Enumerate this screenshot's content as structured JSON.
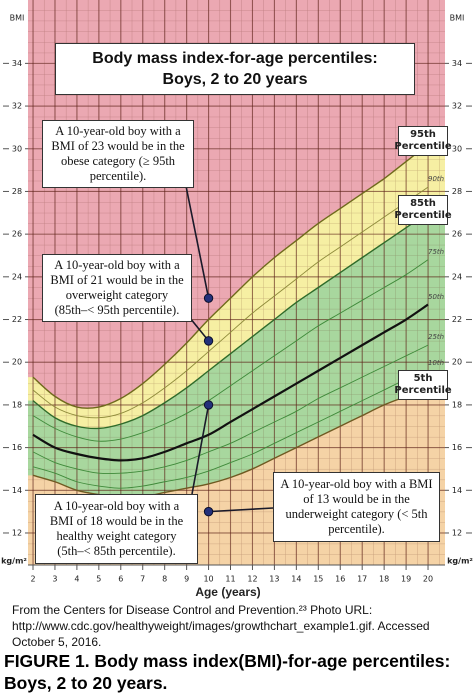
{
  "chart_data": {
    "type": "line",
    "title": "Body mass index-for-age percentiles:",
    "subtitle": "Boys, 2 to 20 years",
    "x_label": "Age (years)",
    "y_label": "BMI",
    "y_unit": "kg/m²",
    "xlim": [
      2,
      20.5
    ],
    "xticks": [
      2,
      3,
      4,
      5,
      6,
      7,
      8,
      9,
      10,
      11,
      12,
      13,
      14,
      15,
      16,
      17,
      18,
      19,
      20
    ],
    "ylim": [
      10.5,
      36.5
    ],
    "yticks": [
      12,
      14,
      16,
      18,
      20,
      22,
      24,
      26,
      28,
      30,
      32,
      34
    ],
    "grid": true,
    "background_color": "#eba8b2",
    "x": [
      2,
      3,
      4,
      5,
      6,
      7,
      8,
      9,
      10,
      11,
      12,
      13,
      14,
      15,
      16,
      17,
      18,
      19,
      20
    ],
    "series": [
      {
        "name": "95th Percentile",
        "color": "#6f6a1c",
        "fill": "#f6efa3",
        "boxed": true,
        "values": [
          19.3,
          18.4,
          17.9,
          17.9,
          18.3,
          19.0,
          19.9,
          20.9,
          22.0,
          23.0,
          24.0,
          24.9,
          25.7,
          26.5,
          27.2,
          27.9,
          28.6,
          29.4,
          30.2
        ]
      },
      {
        "name": "90th",
        "color": "#8e8a3a",
        "values": [
          18.7,
          17.9,
          17.5,
          17.4,
          17.6,
          18.1,
          18.8,
          19.6,
          20.5,
          21.4,
          22.3,
          23.1,
          23.9,
          24.7,
          25.4,
          26.1,
          26.8,
          27.5,
          28.2
        ]
      },
      {
        "name": "85th Percentile",
        "color": "#2f6b2a",
        "fill": "#a8d79e",
        "boxed": true,
        "values": [
          18.2,
          17.4,
          17.0,
          16.9,
          17.1,
          17.5,
          18.1,
          18.8,
          19.6,
          20.4,
          21.2,
          22.0,
          22.8,
          23.5,
          24.2,
          24.9,
          25.6,
          26.3,
          27.0
        ]
      },
      {
        "name": "75th",
        "color": "#3f8a3a",
        "values": [
          17.5,
          16.9,
          16.5,
          16.3,
          16.4,
          16.7,
          17.1,
          17.6,
          18.2,
          18.9,
          19.6,
          20.3,
          21.0,
          21.7,
          22.3,
          22.9,
          23.5,
          24.1,
          24.8
        ]
      },
      {
        "name": "50th",
        "color": "#111111",
        "values": [
          16.6,
          16.0,
          15.7,
          15.5,
          15.4,
          15.5,
          15.8,
          16.2,
          16.6,
          17.2,
          17.8,
          18.4,
          19.0,
          19.6,
          20.2,
          20.8,
          21.4,
          22.0,
          22.7
        ]
      },
      {
        "name": "25th",
        "color": "#3f8a3a",
        "values": [
          15.8,
          15.3,
          15.0,
          14.8,
          14.8,
          14.9,
          15.1,
          15.4,
          15.8,
          16.2,
          16.7,
          17.2,
          17.7,
          18.3,
          18.8,
          19.3,
          19.8,
          20.3,
          20.8
        ]
      },
      {
        "name": "10th",
        "color": "#3f8a3a",
        "values": [
          15.1,
          14.8,
          14.4,
          14.2,
          14.1,
          14.2,
          14.4,
          14.6,
          14.9,
          15.3,
          15.7,
          16.2,
          16.7,
          17.2,
          17.7,
          18.2,
          18.7,
          19.2,
          19.6
        ]
      },
      {
        "name": "5th Percentile",
        "color": "#6f5a22",
        "fill": "#f5d3a6",
        "boxed": true,
        "values": [
          14.7,
          14.4,
          14.0,
          13.8,
          13.7,
          13.7,
          13.9,
          14.1,
          14.3,
          14.6,
          15.0,
          15.5,
          16.0,
          16.5,
          17.0,
          17.5,
          18.0,
          18.4,
          18.8
        ]
      }
    ],
    "annotations": [
      {
        "text": "A 10-year-old boy with a BMI of 23 would be in the obese category (≥ 95th percentile).",
        "x": 10,
        "y": 23
      },
      {
        "text": "A 10-year-old boy with a BMI of 21 would be in the overweight category (85th–< 95th percentile).",
        "x": 10,
        "y": 21
      },
      {
        "text": "A 10-year-old boy with a BMI of 18 would be in the healthy weight category (5th–< 85th percentile).",
        "x": 10,
        "y": 18
      },
      {
        "text": "A 10-year-old boy with a BMI of 13 would be in the underweight category (< 5th percentile).",
        "x": 10,
        "y": 13
      }
    ],
    "source": "From the Centers for Disease Control and Prevention.²³ Photo URL: http://www.cdc.gov/healthyweight/images/growthchart_example1.gif. Accessed October 5, 2016.",
    "caption": "FIGURE 1. Body mass index(BMI)-for-age percentiles: Boys, 2 to 20 years."
  }
}
